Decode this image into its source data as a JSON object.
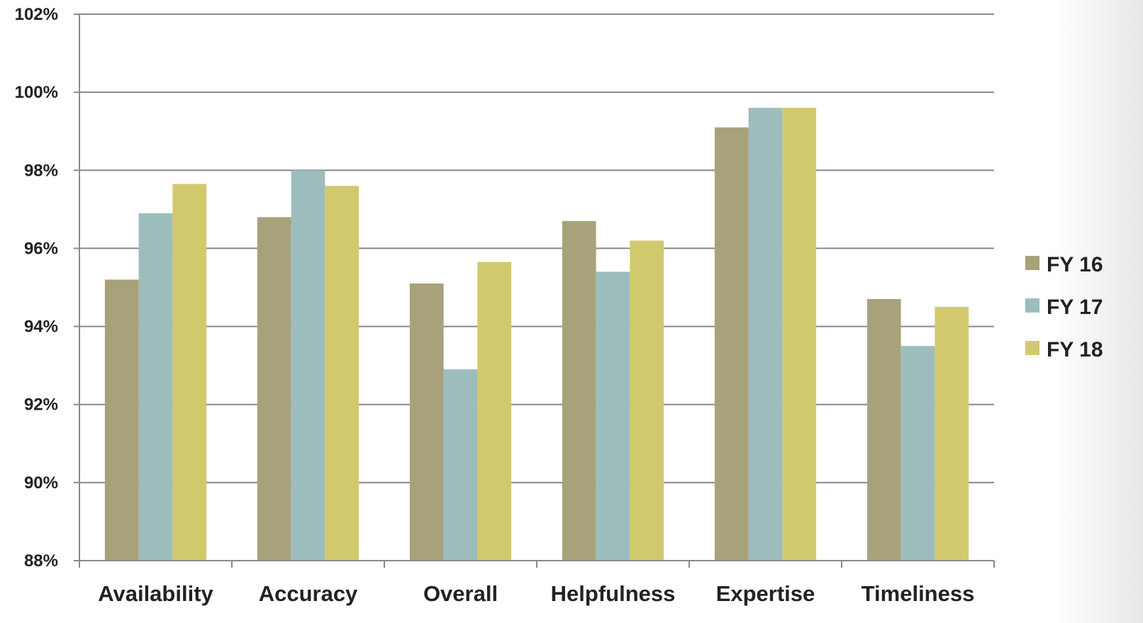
{
  "chart_data": {
    "type": "bar",
    "title": "",
    "xlabel": "",
    "ylabel": "",
    "categories": [
      "Availability",
      "Accuracy",
      "Overall",
      "Helpfulness",
      "Expertise",
      "Timeliness"
    ],
    "series": [
      {
        "name": "FY 16",
        "color": "#a8a27a",
        "values": [
          95.2,
          96.8,
          95.1,
          96.7,
          99.1,
          94.7
        ]
      },
      {
        "name": "FY 17",
        "color": "#9dbdbd",
        "values": [
          96.9,
          98.0,
          92.9,
          95.4,
          99.6,
          93.5
        ]
      },
      {
        "name": "FY 18",
        "color": "#d2c96e",
        "values": [
          97.65,
          97.6,
          95.65,
          96.2,
          99.6,
          94.5
        ]
      }
    ],
    "ylim": [
      88,
      102
    ],
    "yticks": [
      88,
      90,
      92,
      94,
      96,
      98,
      100,
      102
    ],
    "ytick_labels": [
      "88%",
      "90%",
      "92%",
      "94%",
      "96%",
      "98%",
      "100%",
      "102%"
    ],
    "grid": true,
    "legend_position": "right"
  }
}
